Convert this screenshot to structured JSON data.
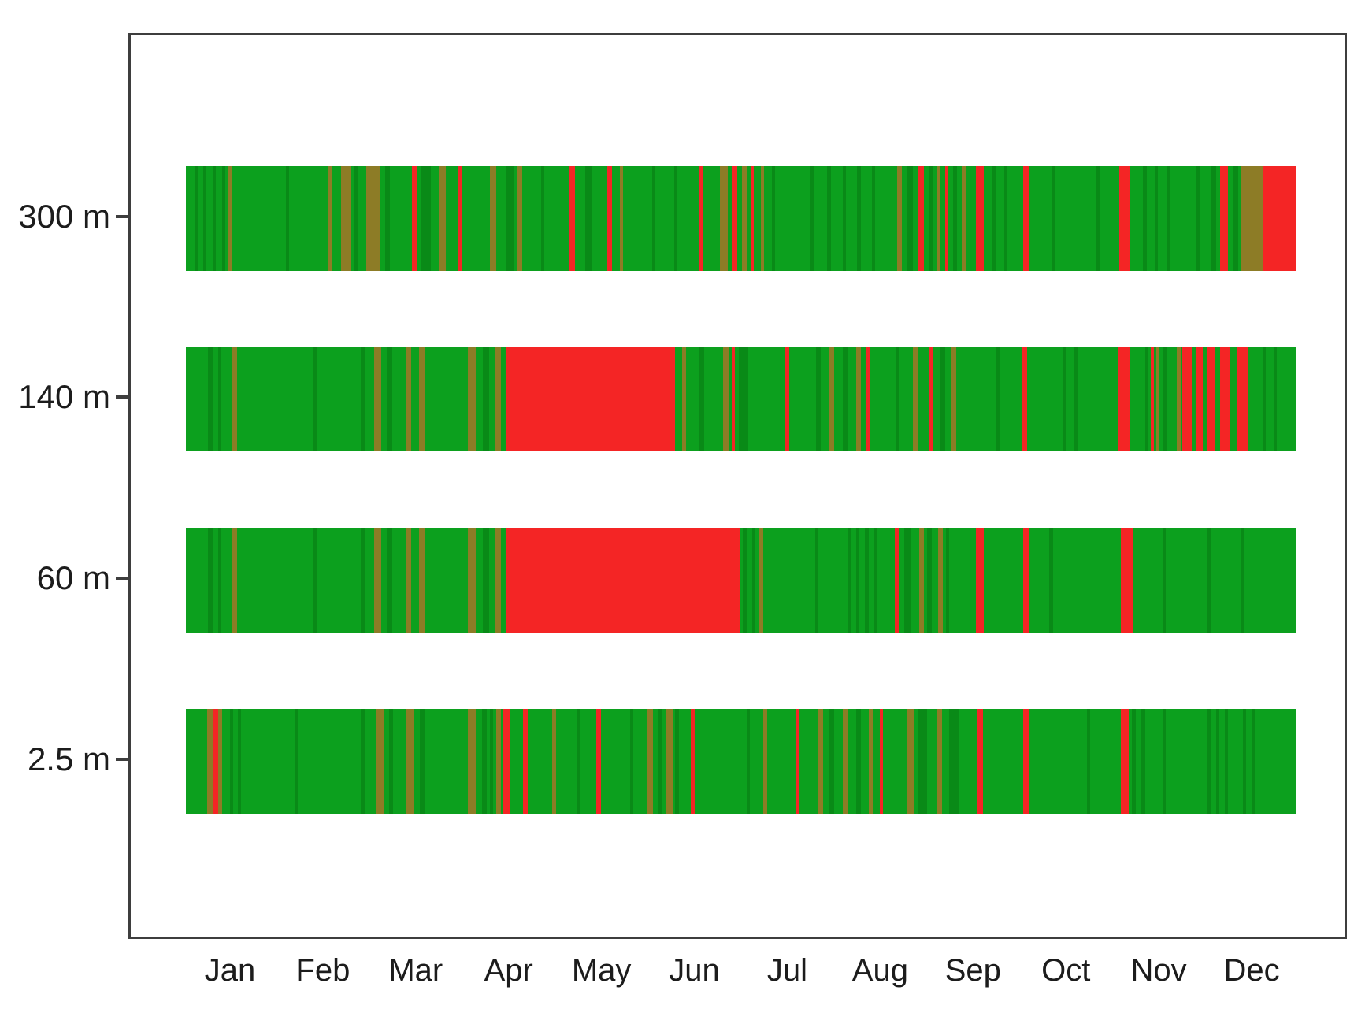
{
  "chart_data": {
    "type": "heatmap",
    "title": "",
    "xlabel": "",
    "ylabel": "",
    "x_axis": {
      "tick_labels": [
        "Jan",
        "Feb",
        "Mar",
        "Apr",
        "May",
        "Jun",
        "Jul",
        "Aug",
        "Sep",
        "Oct",
        "Nov",
        "Dec"
      ],
      "range_fraction": [
        0,
        1
      ],
      "grid": false
    },
    "y_axis": {
      "tick_labels": [
        "300 m",
        "140 m",
        "60 m",
        "2.5 m"
      ],
      "grid": false
    },
    "legend": null,
    "colors": {
      "g": "#0ca01e",
      "d": "#098a17",
      "o": "#8d7c26",
      "r": "#f42525",
      "axis": "#3e3e3e",
      "text": "#1c1c1c"
    },
    "rows": [
      {
        "label": "300 m",
        "base": "g",
        "segments": [
          [
            0.008,
            0.003,
            "d"
          ],
          [
            0.016,
            0.003,
            "d"
          ],
          [
            0.024,
            0.003,
            "d"
          ],
          [
            0.033,
            0.003,
            "d"
          ],
          [
            0.038,
            0.003,
            "o"
          ],
          [
            0.09,
            0.003,
            "d"
          ],
          [
            0.128,
            0.004,
            "o"
          ],
          [
            0.14,
            0.009,
            "o"
          ],
          [
            0.152,
            0.003,
            "d"
          ],
          [
            0.163,
            0.012,
            "o"
          ],
          [
            0.18,
            0.004,
            "d"
          ],
          [
            0.204,
            0.005,
            "r"
          ],
          [
            0.212,
            0.009,
            "d"
          ],
          [
            0.228,
            0.006,
            "o"
          ],
          [
            0.245,
            0.004,
            "r"
          ],
          [
            0.274,
            0.006,
            "o"
          ],
          [
            0.288,
            0.008,
            "d"
          ],
          [
            0.299,
            0.004,
            "o"
          ],
          [
            0.32,
            0.003,
            "d"
          ],
          [
            0.346,
            0.005,
            "r"
          ],
          [
            0.36,
            0.006,
            "d"
          ],
          [
            0.38,
            0.004,
            "r"
          ],
          [
            0.391,
            0.003,
            "o"
          ],
          [
            0.42,
            0.003,
            "d"
          ],
          [
            0.44,
            0.003,
            "d"
          ],
          [
            0.462,
            0.004,
            "r"
          ],
          [
            0.481,
            0.007,
            "o"
          ],
          [
            0.492,
            0.005,
            "r"
          ],
          [
            0.501,
            0.005,
            "o"
          ],
          [
            0.509,
            0.003,
            "r"
          ],
          [
            0.518,
            0.003,
            "o"
          ],
          [
            0.528,
            0.003,
            "d"
          ],
          [
            0.563,
            0.003,
            "d"
          ],
          [
            0.578,
            0.003,
            "d"
          ],
          [
            0.592,
            0.003,
            "d"
          ],
          [
            0.605,
            0.003,
            "d"
          ],
          [
            0.618,
            0.003,
            "d"
          ],
          [
            0.641,
            0.004,
            "o"
          ],
          [
            0.649,
            0.006,
            "d"
          ],
          [
            0.66,
            0.005,
            "r"
          ],
          [
            0.669,
            0.004,
            "d"
          ],
          [
            0.676,
            0.004,
            "o"
          ],
          [
            0.684,
            0.003,
            "r"
          ],
          [
            0.691,
            0.004,
            "d"
          ],
          [
            0.699,
            0.004,
            "o"
          ],
          [
            0.712,
            0.007,
            "r"
          ],
          [
            0.727,
            0.003,
            "d"
          ],
          [
            0.737,
            0.003,
            "d"
          ],
          [
            0.754,
            0.005,
            "r"
          ],
          [
            0.78,
            0.003,
            "d"
          ],
          [
            0.82,
            0.003,
            "d"
          ],
          [
            0.841,
            0.01,
            "r"
          ],
          [
            0.862,
            0.004,
            "d"
          ],
          [
            0.873,
            0.003,
            "d"
          ],
          [
            0.884,
            0.003,
            "d"
          ],
          [
            0.91,
            0.003,
            "d"
          ],
          [
            0.924,
            0.004,
            "d"
          ],
          [
            0.932,
            0.007,
            "r"
          ],
          [
            0.944,
            0.004,
            "d"
          ],
          [
            0.95,
            0.021,
            "o"
          ],
          [
            0.971,
            0.029,
            "r"
          ]
        ]
      },
      {
        "label": "140 m",
        "base": "g",
        "segments": [
          [
            0.02,
            0.004,
            "d"
          ],
          [
            0.029,
            0.003,
            "d"
          ],
          [
            0.042,
            0.004,
            "o"
          ],
          [
            0.115,
            0.003,
            "d"
          ],
          [
            0.158,
            0.004,
            "d"
          ],
          [
            0.17,
            0.006,
            "o"
          ],
          [
            0.181,
            0.005,
            "d"
          ],
          [
            0.199,
            0.004,
            "o"
          ],
          [
            0.21,
            0.006,
            "o"
          ],
          [
            0.254,
            0.007,
            "o"
          ],
          [
            0.268,
            0.005,
            "d"
          ],
          [
            0.279,
            0.005,
            "o"
          ],
          [
            0.289,
            0.152,
            "r"
          ],
          [
            0.447,
            0.004,
            "o"
          ],
          [
            0.463,
            0.004,
            "d"
          ],
          [
            0.484,
            0.005,
            "o"
          ],
          [
            0.492,
            0.003,
            "r"
          ],
          [
            0.498,
            0.009,
            "d"
          ],
          [
            0.54,
            0.004,
            "r"
          ],
          [
            0.568,
            0.004,
            "d"
          ],
          [
            0.58,
            0.004,
            "o"
          ],
          [
            0.592,
            0.004,
            "d"
          ],
          [
            0.604,
            0.004,
            "o"
          ],
          [
            0.613,
            0.004,
            "r"
          ],
          [
            0.64,
            0.003,
            "d"
          ],
          [
            0.655,
            0.004,
            "o"
          ],
          [
            0.669,
            0.004,
            "r"
          ],
          [
            0.68,
            0.004,
            "d"
          ],
          [
            0.69,
            0.004,
            "o"
          ],
          [
            0.73,
            0.003,
            "d"
          ],
          [
            0.753,
            0.005,
            "r"
          ],
          [
            0.79,
            0.003,
            "d"
          ],
          [
            0.8,
            0.003,
            "d"
          ],
          [
            0.84,
            0.011,
            "r"
          ],
          [
            0.864,
            0.003,
            "d"
          ],
          [
            0.869,
            0.003,
            "r"
          ],
          [
            0.874,
            0.003,
            "o"
          ],
          [
            0.88,
            0.004,
            "d"
          ],
          [
            0.893,
            0.004,
            "o"
          ],
          [
            0.898,
            0.008,
            "r"
          ],
          [
            0.91,
            0.006,
            "r"
          ],
          [
            0.92,
            0.007,
            "r"
          ],
          [
            0.932,
            0.008,
            "r"
          ],
          [
            0.947,
            0.01,
            "r"
          ],
          [
            0.97,
            0.003,
            "d"
          ],
          [
            0.98,
            0.003,
            "d"
          ]
        ]
      },
      {
        "label": "60 m",
        "base": "g",
        "segments": [
          [
            0.02,
            0.004,
            "d"
          ],
          [
            0.029,
            0.003,
            "d"
          ],
          [
            0.042,
            0.004,
            "o"
          ],
          [
            0.115,
            0.003,
            "d"
          ],
          [
            0.158,
            0.004,
            "d"
          ],
          [
            0.17,
            0.006,
            "o"
          ],
          [
            0.181,
            0.005,
            "d"
          ],
          [
            0.199,
            0.004,
            "o"
          ],
          [
            0.21,
            0.006,
            "o"
          ],
          [
            0.254,
            0.007,
            "o"
          ],
          [
            0.268,
            0.005,
            "d"
          ],
          [
            0.279,
            0.005,
            "o"
          ],
          [
            0.289,
            0.21,
            "r"
          ],
          [
            0.502,
            0.004,
            "d"
          ],
          [
            0.51,
            0.003,
            "d"
          ],
          [
            0.517,
            0.003,
            "o"
          ],
          [
            0.567,
            0.003,
            "d"
          ],
          [
            0.596,
            0.003,
            "d"
          ],
          [
            0.604,
            0.003,
            "d"
          ],
          [
            0.612,
            0.003,
            "d"
          ],
          [
            0.62,
            0.003,
            "d"
          ],
          [
            0.639,
            0.004,
            "r"
          ],
          [
            0.647,
            0.006,
            "d"
          ],
          [
            0.661,
            0.004,
            "o"
          ],
          [
            0.668,
            0.004,
            "d"
          ],
          [
            0.678,
            0.004,
            "o"
          ],
          [
            0.685,
            0.003,
            "d"
          ],
          [
            0.712,
            0.007,
            "r"
          ],
          [
            0.754,
            0.006,
            "r"
          ],
          [
            0.778,
            0.003,
            "d"
          ],
          [
            0.842,
            0.011,
            "r"
          ],
          [
            0.88,
            0.003,
            "d"
          ],
          [
            0.92,
            0.003,
            "d"
          ],
          [
            0.95,
            0.003,
            "d"
          ]
        ]
      },
      {
        "label": "2.5 m",
        "base": "g",
        "segments": [
          [
            0.019,
            0.005,
            "o"
          ],
          [
            0.024,
            0.005,
            "r"
          ],
          [
            0.029,
            0.004,
            "o"
          ],
          [
            0.04,
            0.003,
            "d"
          ],
          [
            0.047,
            0.003,
            "d"
          ],
          [
            0.098,
            0.003,
            "d"
          ],
          [
            0.158,
            0.004,
            "d"
          ],
          [
            0.172,
            0.006,
            "o"
          ],
          [
            0.183,
            0.004,
            "d"
          ],
          [
            0.198,
            0.007,
            "o"
          ],
          [
            0.211,
            0.004,
            "d"
          ],
          [
            0.254,
            0.007,
            "o"
          ],
          [
            0.267,
            0.004,
            "d"
          ],
          [
            0.274,
            0.003,
            "d"
          ],
          [
            0.28,
            0.004,
            "o"
          ],
          [
            0.286,
            0.006,
            "r"
          ],
          [
            0.304,
            0.004,
            "r"
          ],
          [
            0.33,
            0.004,
            "o"
          ],
          [
            0.352,
            0.003,
            "d"
          ],
          [
            0.37,
            0.004,
            "r"
          ],
          [
            0.4,
            0.003,
            "d"
          ],
          [
            0.415,
            0.006,
            "o"
          ],
          [
            0.425,
            0.004,
            "d"
          ],
          [
            0.433,
            0.006,
            "o"
          ],
          [
            0.441,
            0.003,
            "d"
          ],
          [
            0.455,
            0.004,
            "r"
          ],
          [
            0.505,
            0.003,
            "d"
          ],
          [
            0.52,
            0.004,
            "o"
          ],
          [
            0.549,
            0.004,
            "r"
          ],
          [
            0.57,
            0.004,
            "o"
          ],
          [
            0.58,
            0.004,
            "d"
          ],
          [
            0.592,
            0.004,
            "o"
          ],
          [
            0.604,
            0.004,
            "d"
          ],
          [
            0.615,
            0.004,
            "o"
          ],
          [
            0.625,
            0.003,
            "r"
          ],
          [
            0.65,
            0.006,
            "o"
          ],
          [
            0.66,
            0.008,
            "d"
          ],
          [
            0.676,
            0.005,
            "o"
          ],
          [
            0.688,
            0.008,
            "d"
          ],
          [
            0.713,
            0.005,
            "r"
          ],
          [
            0.754,
            0.005,
            "r"
          ],
          [
            0.812,
            0.003,
            "d"
          ],
          [
            0.842,
            0.008,
            "r"
          ],
          [
            0.852,
            0.004,
            "d"
          ],
          [
            0.86,
            0.004,
            "d"
          ],
          [
            0.88,
            0.003,
            "d"
          ],
          [
            0.92,
            0.004,
            "d"
          ],
          [
            0.928,
            0.003,
            "d"
          ],
          [
            0.936,
            0.003,
            "d"
          ],
          [
            0.952,
            0.003,
            "d"
          ],
          [
            0.96,
            0.003,
            "d"
          ]
        ]
      }
    ]
  }
}
